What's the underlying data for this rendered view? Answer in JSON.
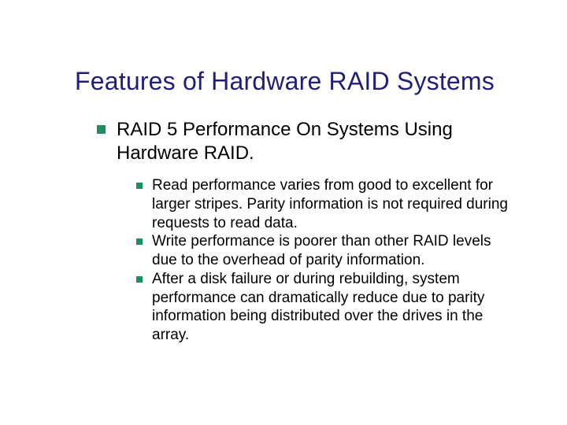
{
  "slide": {
    "title": "Features of Hardware RAID Systems",
    "title_color": "#1f1f7a",
    "title_fontsize": 32,
    "background_color": "#ffffff",
    "bullet_color": "#1f8f5f",
    "body_text_color": "#000000",
    "main_bullet": {
      "text": "RAID 5 Performance On Systems Using Hardware RAID.",
      "fontsize": 24,
      "bullet_size": 11
    },
    "sub_bullets": {
      "fontsize": 19,
      "bullet_size": 8,
      "items": [
        "Read performance varies from good to excellent for larger stripes.  Parity information is not required during requests to read data.",
        "Write performance is poorer than other RAID levels due to the overhead of parity information.",
        "After a disk failure or during rebuilding, system performance can dramatically reduce due to parity information being distributed over the drives in the array."
      ]
    }
  }
}
